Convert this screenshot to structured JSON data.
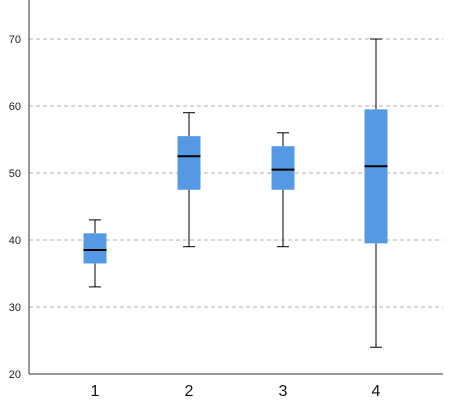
{
  "chart_data": {
    "type": "box",
    "title": "",
    "xlabel": "",
    "ylabel": "",
    "ylim": [
      20,
      75
    ],
    "yticks": [
      20,
      30,
      40,
      50,
      60,
      70
    ],
    "ytick_labels": [
      "20",
      "30",
      "40",
      "50",
      "60",
      "70"
    ],
    "grid": {
      "axis": "y",
      "style": "dashed",
      "lines_at": [
        30,
        40,
        50,
        60,
        70
      ]
    },
    "categories": [
      "1",
      "2",
      "3",
      "4"
    ],
    "boxes": [
      {
        "category": "1",
        "min": 33,
        "q1": 36.5,
        "median": 38.5,
        "q3": 41,
        "max": 43
      },
      {
        "category": "2",
        "min": 39,
        "q1": 47.5,
        "median": 52.5,
        "q3": 55.5,
        "max": 59
      },
      {
        "category": "3",
        "min": 39,
        "q1": 47.5,
        "median": 50.5,
        "q3": 54,
        "max": 56
      },
      {
        "category": "4",
        "min": 24,
        "q1": 39.5,
        "median": 51,
        "q3": 59.5,
        "max": 70
      }
    ]
  },
  "colors": {
    "box_fill": "#5599e4",
    "median_line": "#000000",
    "whisker": "#000000",
    "grid": "#b0b0b0",
    "axis": "#333333"
  }
}
